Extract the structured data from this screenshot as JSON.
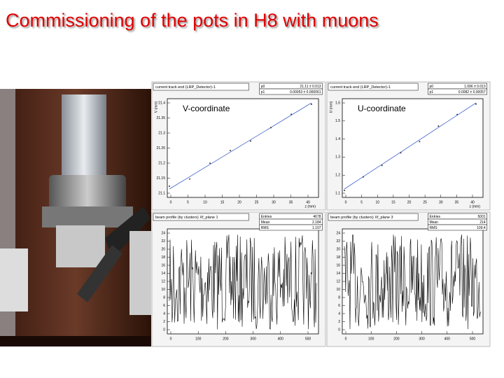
{
  "title": "Commissioning of the pots in H8 with muons",
  "panels": [
    {
      "header": "current track end (LRP_Detector)-1",
      "label": "V-coordinate",
      "stats": [
        [
          "p0",
          "21.11 ± 0.013"
        ],
        [
          "p1",
          "0.00053 ± 0.000061"
        ]
      ],
      "yaxis": "V (mm)",
      "xaxis": "z (mm)",
      "yticks": [
        "21.1",
        "21.15",
        "21.2",
        "21.25",
        "21.3",
        "21.35",
        "21.4"
      ],
      "xticks": [
        "0",
        "5",
        "10",
        "15",
        "20",
        "25",
        "30",
        "35",
        "40"
      ]
    },
    {
      "header": "current track end (LRP_Detector)-1",
      "label": "U-coordinate",
      "stats": [
        [
          "p0",
          "1.096 ± 0.013"
        ],
        [
          "p1",
          "0.0082 ± 0.00057"
        ]
      ],
      "yaxis": "U (mm)",
      "xaxis": "z (mm)",
      "yticks": [
        "1.1",
        "1.2",
        "1.3",
        "1.4",
        "1.5",
        "1.6"
      ],
      "xticks": [
        "0",
        "5",
        "10",
        "15",
        "20",
        "25",
        "30",
        "35",
        "40"
      ]
    },
    {
      "header": "beam profile (by clusters) Xf_plane 1",
      "label": null,
      "stats": [
        [
          "Entries",
          "4678"
        ],
        [
          "Mean",
          "2.184"
        ],
        [
          "RMS",
          "1.107"
        ]
      ],
      "yaxis": null,
      "xaxis": null,
      "yticks": [
        "0",
        "2",
        "4",
        "6",
        "8",
        "10",
        "12",
        "14",
        "16",
        "18",
        "20",
        "22",
        "24"
      ],
      "xticks": [
        "0",
        "100",
        "200",
        "300",
        "400",
        "500"
      ]
    },
    {
      "header": "beam profile (by clusters) Xf_plane 3",
      "label": null,
      "stats": [
        [
          "Entries",
          "5001"
        ],
        [
          "Mean",
          "214"
        ],
        [
          "RMS",
          "109.4"
        ]
      ],
      "yaxis": null,
      "xaxis": null,
      "yticks": [
        "0",
        "2",
        "4",
        "6",
        "8",
        "10",
        "12",
        "14",
        "16",
        "18",
        "20",
        "22",
        "24"
      ],
      "xticks": [
        "0",
        "100",
        "200",
        "300",
        "400",
        "500"
      ]
    }
  ]
}
